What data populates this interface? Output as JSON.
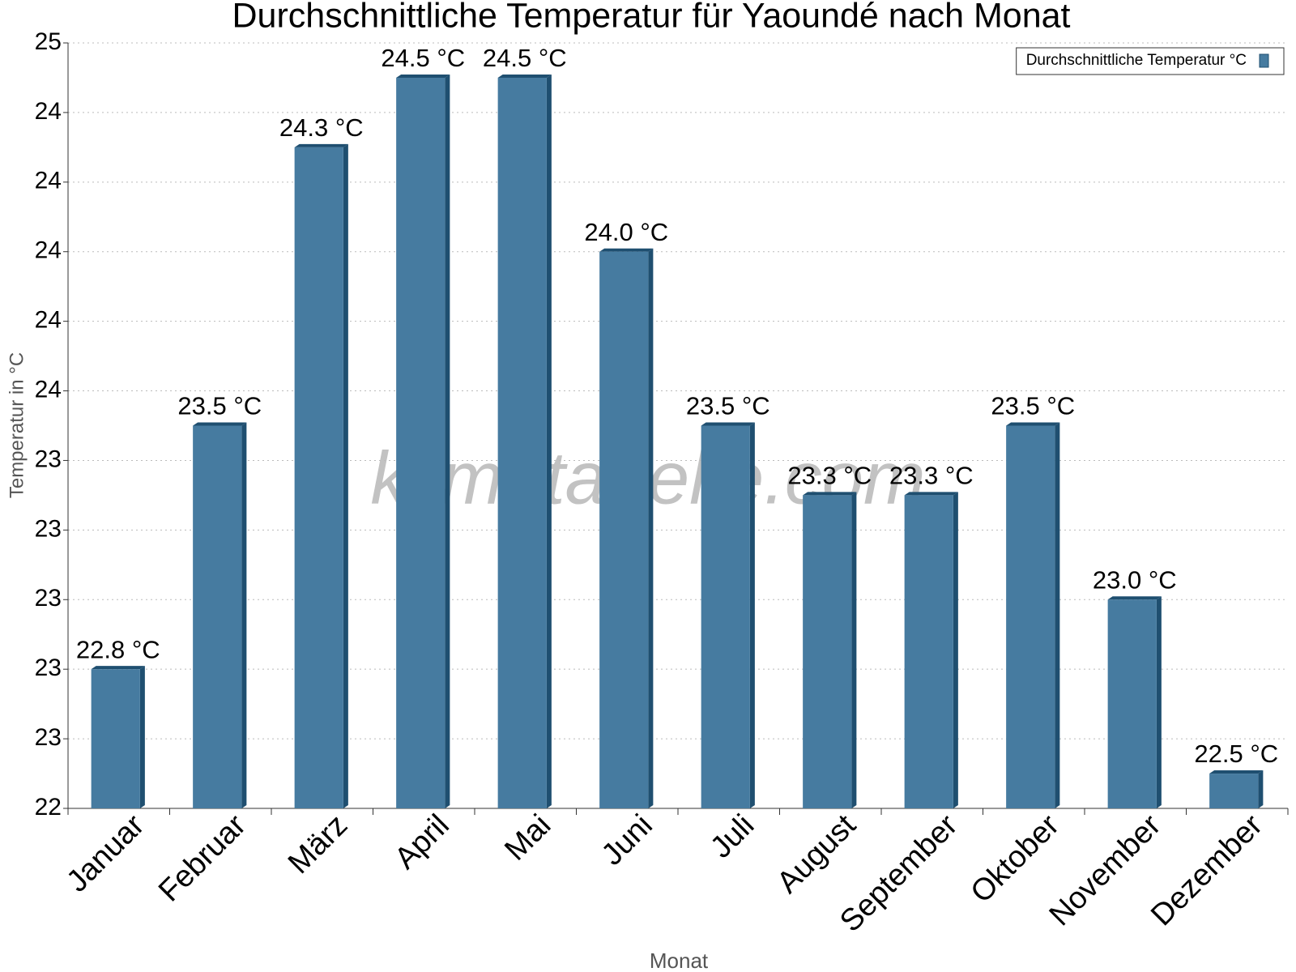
{
  "chart_data": {
    "type": "bar",
    "title": "Durchschnittliche Temperatur für Yaoundé nach Monat",
    "x_label": "Monat",
    "y_label": "Temperatur in °C",
    "watermark": "klimatabelle.com",
    "categories": [
      "Januar",
      "Februar",
      "März",
      "April",
      "Mai",
      "Juni",
      "Juli",
      "August",
      "September",
      "Oktober",
      "November",
      "Dezember"
    ],
    "series": [
      {
        "name": "Durchschnittliche Temperatur °C",
        "color": "#467ba0",
        "values": [
          22.8,
          23.5,
          24.3,
          24.5,
          24.5,
          24.0,
          23.5,
          23.3,
          23.3,
          23.5,
          23.0,
          22.5
        ],
        "value_labels": [
          "22.8 °C",
          "23.5 °C",
          "24.3 °C",
          "24.5 °C",
          "24.5 °C",
          "24.0 °C",
          "23.5 °C",
          "23.3 °C",
          "23.3 °C",
          "23.5 °C",
          "23.0 °C",
          "22.5 °C"
        ]
      }
    ],
    "ylim": [
      22.4,
      24.6
    ],
    "yticks": [
      {
        "value": 22.4,
        "label": "22"
      },
      {
        "value": 22.6,
        "label": "23"
      },
      {
        "value": 22.8,
        "label": "23"
      },
      {
        "value": 23.0,
        "label": "23"
      },
      {
        "value": 23.2,
        "label": "23"
      },
      {
        "value": 23.4,
        "label": "23"
      },
      {
        "value": 23.6,
        "label": "24"
      },
      {
        "value": 23.8,
        "label": "24"
      },
      {
        "value": 24.0,
        "label": "24"
      },
      {
        "value": 24.2,
        "label": "24"
      },
      {
        "value": 24.4,
        "label": "24"
      },
      {
        "value": 24.6,
        "label": "25"
      }
    ],
    "grid": true,
    "legend": "top-right"
  }
}
